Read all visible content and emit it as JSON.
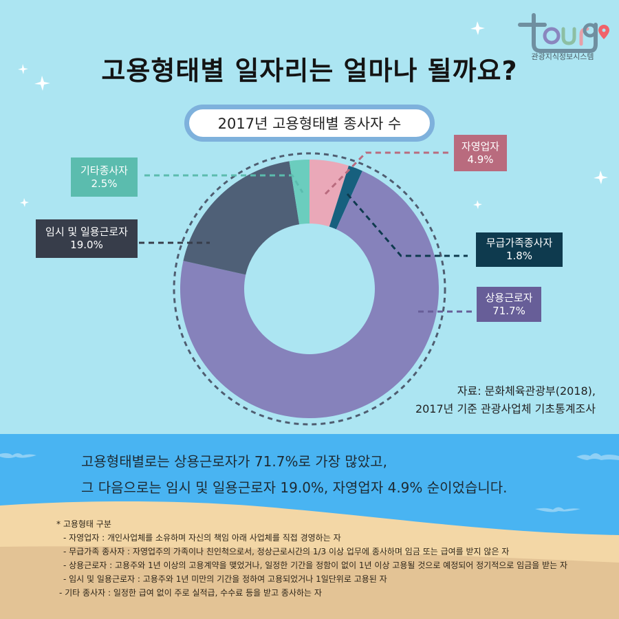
{
  "header": {
    "title": "고용형태별 일자리는 얼마나 될까요?",
    "subtitle": "2017년 고용형태별 종사자 수",
    "logo": {
      "wordmark": "tour9",
      "caption": "관광지식정보시스템",
      "pin_icon": "map-pin-icon"
    }
  },
  "labels": {
    "self_employed": {
      "name": "자영업자",
      "value": "4.9%"
    },
    "unpaid_family": {
      "name": "무급가족종사자",
      "value": "1.8%"
    },
    "regular": {
      "name": "상용근로자",
      "value": "71.7%"
    },
    "temporary": {
      "name": "임시 및 일용근로자",
      "value": "19.0%"
    },
    "other": {
      "name": "기타종사자",
      "value": "2.5%"
    }
  },
  "source": {
    "line1": "자료: 문화체육관광부(2018),",
    "line2": "2017년 기준 관광사업체 기초통계조사"
  },
  "summary": {
    "line1": "고용형태별로는 상용근로자가 71.7%로 가장 많았고,",
    "line2": "그 다음으로는 임시 및 일용근로자 19.0%, 자영업자 4.9% 순이었습니다."
  },
  "notes": {
    "heading": "* 고용형태 구분",
    "items": [
      "- 자영업자 : 개인사업체를 소유하며 자신의 책임 아래 사업체를 직접 경영하는 자",
      "- 무급가족 종사자 : 자영업주의 가족이나 친인척으로서, 정상근로시간의 1/3 이상 업무에 종사하며 임금 또는 급여를 받지 않은 자",
      "- 상용근로자 : 고용주와 1년 이상의 고용계약을 맺었거나, 일정한 기간을 정함이 없이 1년 이상 고용될 것으로 예정되어 정기적으로 임금을 받는 자",
      "- 임시 및 일용근로자 : 고용주와 1년 미만의 기간을 정하여 고용되었거나 1일단위로 고용된 자",
      "- 기타 종사자 : 일정한 급여 없이 주로 실적급, 수수료 등을 받고 종사하는 자"
    ]
  },
  "colors": {
    "sky": "#ace5f2",
    "sea": "#49b4f2",
    "sand_light": "#f3d7a6",
    "sand_dark": "#e3c395",
    "self_employed": "#eaa8b8",
    "self_employed_box": "#b96b7e",
    "unpaid_family": "#17607e",
    "unpaid_family_box": "#0e3a4e",
    "regular": "#8682bb",
    "regular_box": "#675e98",
    "temporary": "#4f6077",
    "temporary_box": "#373d4a",
    "other": "#6bcdbe",
    "other_box": "#5bbcae"
  },
  "chart_data": {
    "type": "pie",
    "subtype": "donut",
    "title": "2017년 고용형태별 종사자 수",
    "categories": [
      "자영업자",
      "무급가족종사자",
      "상용근로자",
      "임시 및 일용근로자",
      "기타종사자"
    ],
    "values": [
      4.9,
      1.8,
      71.7,
      19.0,
      2.5
    ],
    "unit": "%",
    "start_angle": "12 o'clock, clockwise",
    "colors": [
      "#eaa8b8",
      "#17607e",
      "#8682bb",
      "#4f6077",
      "#6bcdbe"
    ],
    "legend": "callout labels with dashed leader lines",
    "source": "문화체육관광부(2018), 2017년 기준 관광사업체 기초통계조사"
  }
}
